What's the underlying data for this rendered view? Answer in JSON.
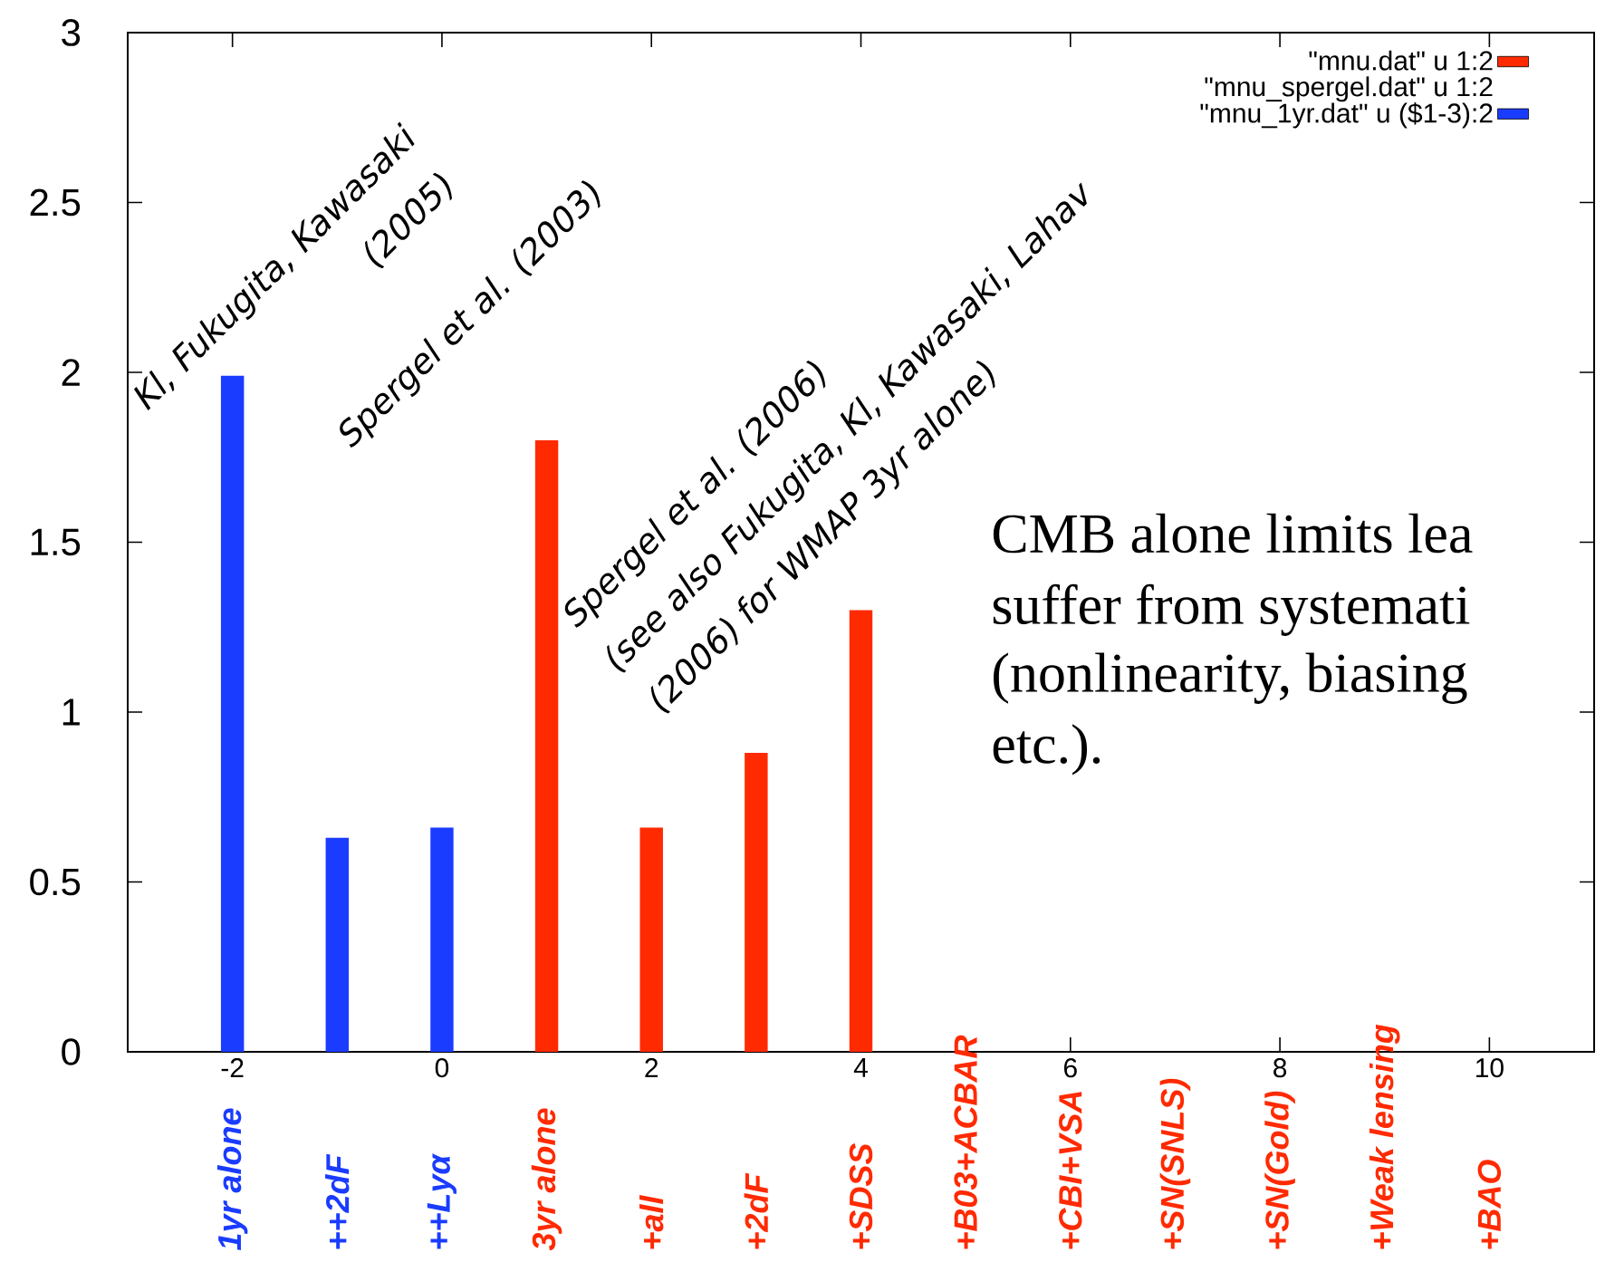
{
  "chart_data": {
    "type": "bar",
    "xlim": [
      -3,
      11
    ],
    "ylim": [
      0,
      3
    ],
    "xticks": [
      -2,
      0,
      2,
      4,
      6,
      8,
      10
    ],
    "yticks": [
      0,
      0.5,
      1,
      1.5,
      2,
      2.5,
      3
    ],
    "legend": "top right",
    "series": [
      {
        "name": "\"mnu.dat\" u 1:2",
        "color": "#ff2a00",
        "x": [
          1,
          2,
          3,
          4
        ],
        "values": [
          1.8,
          0.66,
          0.88,
          1.3
        ]
      },
      {
        "name": "\"mnu_spergel.dat\" u 1:2"
      },
      {
        "name": "\"mnu_1yr.dat\" u ($1-3):2",
        "color": "#1a3cff",
        "x": [
          -2,
          -1,
          0
        ],
        "values": [
          1.99,
          0.63,
          0.66
        ]
      }
    ],
    "annotations": [
      "1yr alone",
      "++2dF",
      "++Lyα",
      "3yr alone",
      "+all",
      "+2dF",
      "+SDSS",
      "+B03+ACBAR",
      "+CBI+VSA",
      "+SN(SNLS)",
      "+SN(Gold)",
      "+Weak lensing",
      "+BAO",
      "Kl, Fukugita, Kawasaki",
      "(2005)",
      "Spergel et al. (2003)",
      "Spergel et al. (2006)",
      "(see also Fukugita, Kl, Kawasaki, Lahav",
      "(2006) for WMAP 3yr alone)",
      "CMB alone limits lea",
      "suffer from systemati",
      "(nonlinearity, biasing",
      "etc.)."
    ]
  }
}
